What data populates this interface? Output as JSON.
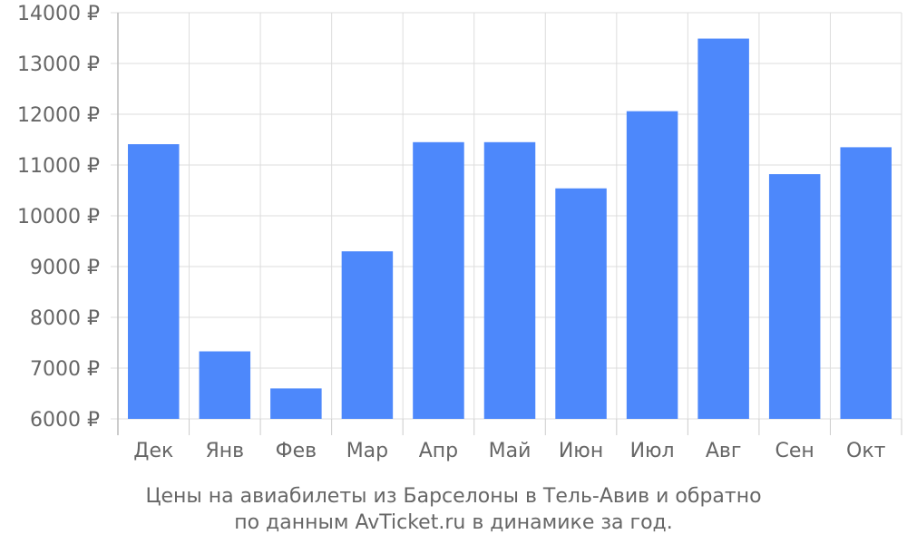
{
  "chart_data": {
    "type": "bar",
    "categories": [
      "Дек",
      "Янв",
      "Фев",
      "Мар",
      "Апр",
      "Май",
      "Июн",
      "Июл",
      "Авг",
      "Сен",
      "Окт"
    ],
    "values": [
      11410,
      7330,
      6600,
      9300,
      11450,
      11450,
      10540,
      12060,
      13490,
      10820,
      11350
    ],
    "ylim": [
      6000,
      14000
    ],
    "yticks": [
      6000,
      7000,
      8000,
      9000,
      10000,
      11000,
      12000,
      13000,
      14000
    ],
    "ytick_labels": [
      "6000 ₽",
      "7000 ₽",
      "8000 ₽",
      "9000 ₽",
      "10000 ₽",
      "11000 ₽",
      "12000 ₽",
      "13000 ₽",
      "14000 ₽"
    ],
    "grid": true,
    "bar_color": "#4d88fb",
    "caption_line1": "Цены на авиабилеты из Барселоны в Тель-Авив и обратно",
    "caption_line2": "по данным AvTicket.ru в динамике за год."
  }
}
